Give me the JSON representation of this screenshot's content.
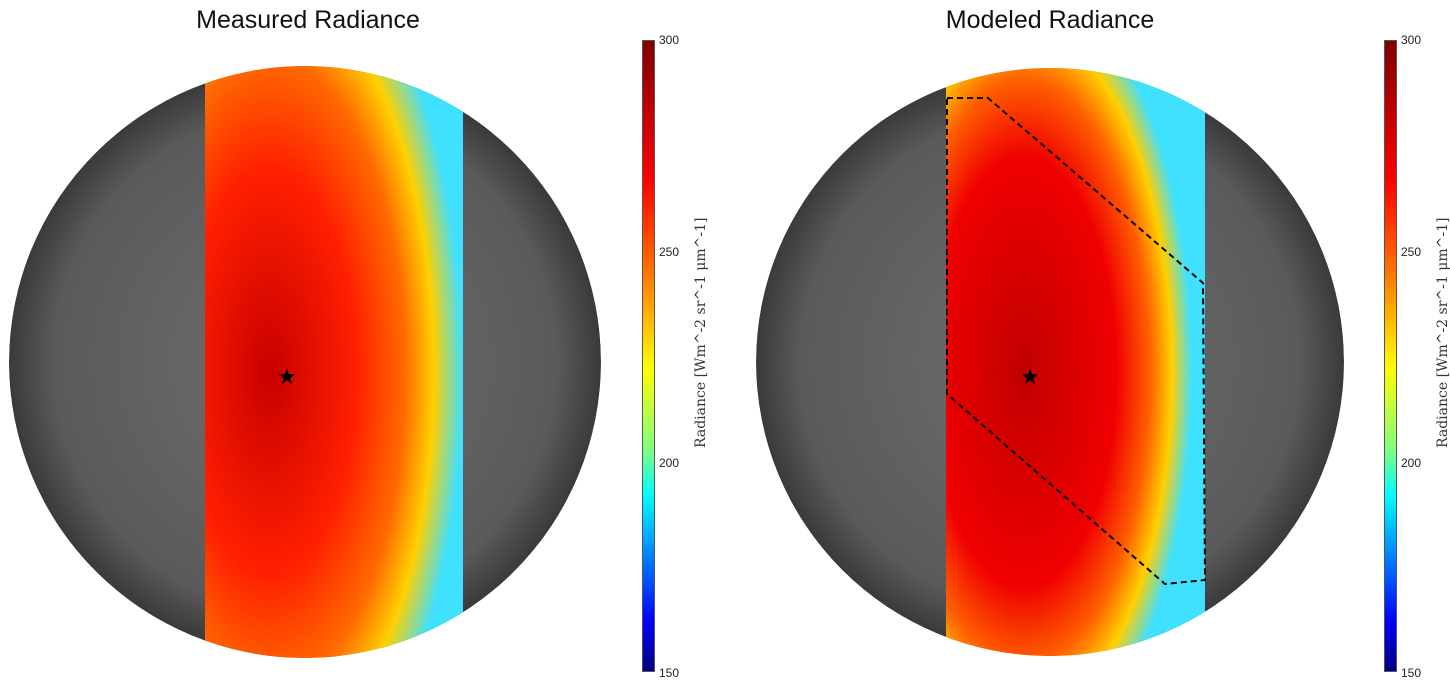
{
  "chart_data": [
    {
      "type": "heatmap",
      "title": "Measured Radiance",
      "colorbar": {
        "label": "Radiance [Wm^-2 sr^-1 μm^-1]",
        "range": [
          150,
          300
        ],
        "ticks": [
          "300",
          "250",
          "200",
          "150"
        ],
        "colormap": "jet"
      },
      "marker": "star"
    },
    {
      "type": "heatmap",
      "title": "Modeled Radiance",
      "colorbar": {
        "label": "Radiance [Wm^-2 sr^-1 μm^-1]",
        "range": [
          150,
          300
        ],
        "ticks": [
          "300",
          "250",
          "200",
          "150"
        ],
        "colormap": "jet"
      },
      "marker": "star",
      "overlay": "dashed polygon region"
    }
  ],
  "colors": {
    "disk": "#6a6a6a",
    "hot": "#d00000",
    "edge": "#ffff40"
  }
}
